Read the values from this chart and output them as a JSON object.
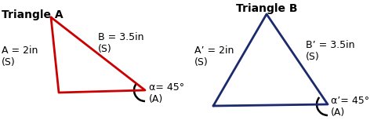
{
  "title_a": "Triangle A",
  "title_b": "Triangle B",
  "label_a_side": "A = 2in\n(S)",
  "label_b_side": "B = 3.5in\n(S)",
  "label_a_angle": "α= 45°\n(A)",
  "label_ap_side": "A’ = 2in\n(S)",
  "label_bp_side": "B’ = 3.5in\n(S)",
  "label_ap_angle": "α’= 45°\n(A)",
  "tri_a_color": "#cc0000",
  "tri_b_color": "#1a2a6c",
  "bg_color": "#ffffff",
  "title_fontsize": 10,
  "label_fontsize": 9,
  "arc_color": "#000000"
}
